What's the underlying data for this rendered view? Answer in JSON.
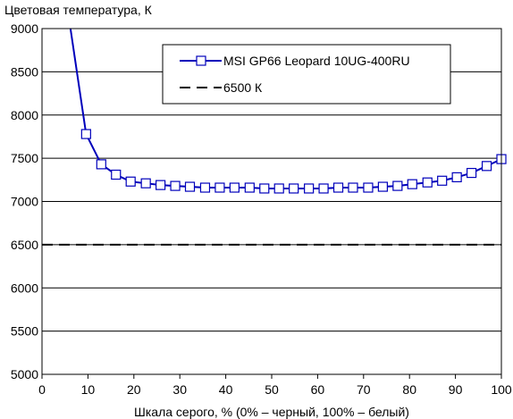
{
  "chart_data": {
    "type": "line",
    "ylabel": "Цветовая температура, К",
    "xlabel": "Шкала серого, % (0% – черный, 100% – белый)",
    "xlim": [
      0,
      100
    ],
    "ylim": [
      5000,
      9000
    ],
    "x_ticks": [
      0,
      10,
      20,
      30,
      40,
      50,
      60,
      70,
      80,
      90,
      100
    ],
    "y_ticks": [
      5000,
      5500,
      6000,
      6500,
      7000,
      7500,
      8000,
      8500,
      9000
    ],
    "grid": "horizontal",
    "legend_position": "top-right",
    "series": [
      {
        "name": "MSI GP66 Leopard 10UG-400RU",
        "color": "#0000bb",
        "marker": "square",
        "leading_segment": {
          "x": [
            6.2,
            9.6
          ],
          "y": [
            9000,
            7780
          ]
        },
        "x": [
          9.6,
          12.9,
          16.1,
          19.3,
          22.6,
          25.8,
          29.0,
          32.2,
          35.5,
          38.7,
          41.9,
          45.2,
          48.4,
          51.6,
          54.8,
          58.1,
          61.3,
          64.5,
          67.7,
          71.0,
          74.2,
          77.4,
          80.6,
          83.9,
          87.1,
          90.3,
          93.5,
          96.8,
          100.0
        ],
        "y": [
          7780,
          7430,
          7310,
          7230,
          7210,
          7190,
          7180,
          7170,
          7160,
          7160,
          7160,
          7160,
          7150,
          7150,
          7150,
          7150,
          7150,
          7160,
          7160,
          7160,
          7170,
          7180,
          7200,
          7220,
          7240,
          7280,
          7330,
          7410,
          7490
        ]
      },
      {
        "name": "6500 К",
        "color": "#000000",
        "style": "dashed",
        "x": [
          0,
          100
        ],
        "y": [
          6500,
          6500
        ]
      }
    ]
  }
}
